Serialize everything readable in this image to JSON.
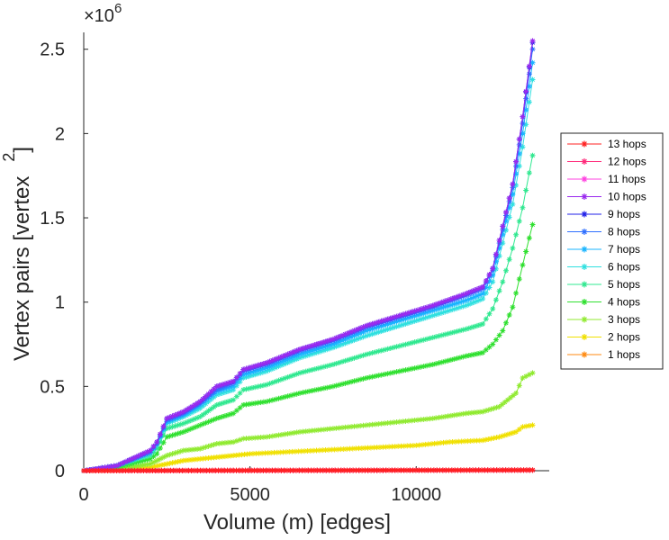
{
  "chart_data": {
    "type": "line",
    "xlabel": "Volume (m) [edges]",
    "ylabel": "Vertex pairs [vertex",
    "ylabel_superscript": "2",
    "ylabel_suffix": "]",
    "y_exponent_base": "×10",
    "y_exponent_power": "6",
    "xlim": [
      0,
      14000
    ],
    "ylim": [
      0,
      2.6
    ],
    "x_ticks": [
      0,
      5000,
      10000
    ],
    "x_tick_labels": [
      "0",
      "5000",
      "10000"
    ],
    "y_ticks": [
      0,
      0.5,
      1,
      1.5,
      2,
      2.5
    ],
    "y_tick_labels": [
      "0",
      "0.5",
      "1",
      "1.5",
      "2",
      "2.5"
    ],
    "grid": false,
    "legend_position": "right",
    "marker": "asterisk",
    "series": [
      {
        "name": "13 hops",
        "color": "#ff2020",
        "points": [
          [
            0,
            0
          ],
          [
            13500,
            0.0035
          ]
        ]
      },
      {
        "name": "12 hops",
        "color": "#ff2a7a",
        "points": [
          [
            0,
            0
          ],
          [
            13500,
            0.0035
          ]
        ]
      },
      {
        "name": "11 hops",
        "color": "#ff40e0",
        "points": [
          [
            0,
            0
          ],
          [
            13500,
            0.0035
          ]
        ]
      },
      {
        "name": "10 hops",
        "color": "#9a2aee",
        "points": [
          [
            0,
            0
          ],
          [
            1000,
            0.03
          ],
          [
            2000,
            0.12
          ],
          [
            2200,
            0.17
          ],
          [
            2500,
            0.31
          ],
          [
            3000,
            0.35
          ],
          [
            3500,
            0.41
          ],
          [
            4000,
            0.5
          ],
          [
            4500,
            0.53
          ],
          [
            4800,
            0.6
          ],
          [
            5500,
            0.64
          ],
          [
            6500,
            0.72
          ],
          [
            7500,
            0.78
          ],
          [
            8500,
            0.86
          ],
          [
            9500,
            0.92
          ],
          [
            10500,
            0.98
          ],
          [
            11500,
            1.05
          ],
          [
            12000,
            1.09
          ],
          [
            12300,
            1.2
          ],
          [
            12600,
            1.45
          ],
          [
            12900,
            1.7
          ],
          [
            13200,
            2.1
          ],
          [
            13500,
            2.55
          ]
        ]
      },
      {
        "name": "9 hops",
        "color": "#2020e8",
        "points": [
          [
            0,
            0
          ],
          [
            1000,
            0.03
          ],
          [
            2000,
            0.12
          ],
          [
            2200,
            0.17
          ],
          [
            2500,
            0.31
          ],
          [
            3000,
            0.35
          ],
          [
            3500,
            0.41
          ],
          [
            4000,
            0.5
          ],
          [
            4500,
            0.53
          ],
          [
            4800,
            0.6
          ],
          [
            5500,
            0.64
          ],
          [
            6500,
            0.72
          ],
          [
            7500,
            0.78
          ],
          [
            8500,
            0.86
          ],
          [
            9500,
            0.92
          ],
          [
            10500,
            0.98
          ],
          [
            11500,
            1.05
          ],
          [
            12000,
            1.09
          ],
          [
            12300,
            1.2
          ],
          [
            12600,
            1.45
          ],
          [
            12900,
            1.7
          ],
          [
            13200,
            2.1
          ],
          [
            13500,
            2.54
          ]
        ]
      },
      {
        "name": "8 hops",
        "color": "#3070ff",
        "points": [
          [
            0,
            0
          ],
          [
            1000,
            0.03
          ],
          [
            2000,
            0.11
          ],
          [
            2200,
            0.16
          ],
          [
            2500,
            0.3
          ],
          [
            3000,
            0.34
          ],
          [
            3500,
            0.4
          ],
          [
            4000,
            0.48
          ],
          [
            4500,
            0.52
          ],
          [
            4800,
            0.59
          ],
          [
            5500,
            0.63
          ],
          [
            6500,
            0.71
          ],
          [
            7500,
            0.77
          ],
          [
            8500,
            0.85
          ],
          [
            9500,
            0.91
          ],
          [
            10500,
            0.97
          ],
          [
            11500,
            1.04
          ],
          [
            12000,
            1.08
          ],
          [
            12300,
            1.19
          ],
          [
            12600,
            1.43
          ],
          [
            12900,
            1.68
          ],
          [
            13200,
            2.06
          ],
          [
            13500,
            2.5
          ]
        ]
      },
      {
        "name": "7 hops",
        "color": "#18b4ff",
        "points": [
          [
            0,
            0
          ],
          [
            1000,
            0.03
          ],
          [
            2000,
            0.11
          ],
          [
            2200,
            0.16
          ],
          [
            2500,
            0.29
          ],
          [
            3000,
            0.33
          ],
          [
            3500,
            0.39
          ],
          [
            4000,
            0.47
          ],
          [
            4500,
            0.5
          ],
          [
            4800,
            0.57
          ],
          [
            5500,
            0.61
          ],
          [
            6500,
            0.69
          ],
          [
            7500,
            0.75
          ],
          [
            8500,
            0.83
          ],
          [
            9500,
            0.89
          ],
          [
            10500,
            0.95
          ],
          [
            11500,
            1.01
          ],
          [
            12000,
            1.05
          ],
          [
            12300,
            1.16
          ],
          [
            12600,
            1.4
          ],
          [
            12900,
            1.64
          ],
          [
            13200,
            2.0
          ],
          [
            13500,
            2.42
          ]
        ]
      },
      {
        "name": "6 hops",
        "color": "#30e0e0",
        "points": [
          [
            0,
            0
          ],
          [
            1000,
            0.03
          ],
          [
            2000,
            0.1
          ],
          [
            2200,
            0.15
          ],
          [
            2500,
            0.28
          ],
          [
            3000,
            0.32
          ],
          [
            3500,
            0.37
          ],
          [
            4000,
            0.45
          ],
          [
            4500,
            0.48
          ],
          [
            4800,
            0.55
          ],
          [
            5500,
            0.59
          ],
          [
            6500,
            0.67
          ],
          [
            7500,
            0.73
          ],
          [
            8500,
            0.8
          ],
          [
            9500,
            0.86
          ],
          [
            10500,
            0.92
          ],
          [
            11500,
            0.98
          ],
          [
            12000,
            1.02
          ],
          [
            12300,
            1.12
          ],
          [
            12600,
            1.35
          ],
          [
            12900,
            1.58
          ],
          [
            13200,
            1.92
          ],
          [
            13500,
            2.32
          ]
        ]
      },
      {
        "name": "5 hops",
        "color": "#30e890",
        "points": [
          [
            0,
            0
          ],
          [
            1000,
            0.03
          ],
          [
            2000,
            0.09
          ],
          [
            2200,
            0.13
          ],
          [
            2500,
            0.25
          ],
          [
            3000,
            0.28
          ],
          [
            3500,
            0.32
          ],
          [
            4000,
            0.39
          ],
          [
            4500,
            0.42
          ],
          [
            4800,
            0.48
          ],
          [
            5500,
            0.51
          ],
          [
            6500,
            0.58
          ],
          [
            7500,
            0.63
          ],
          [
            8500,
            0.69
          ],
          [
            9500,
            0.74
          ],
          [
            10500,
            0.79
          ],
          [
            11500,
            0.84
          ],
          [
            12000,
            0.87
          ],
          [
            12300,
            0.96
          ],
          [
            12600,
            1.12
          ],
          [
            12900,
            1.32
          ],
          [
            13200,
            1.56
          ],
          [
            13500,
            1.87
          ]
        ]
      },
      {
        "name": "4 hops",
        "color": "#30e030",
        "points": [
          [
            0,
            0
          ],
          [
            1000,
            0.02
          ],
          [
            2000,
            0.07
          ],
          [
            2200,
            0.1
          ],
          [
            2500,
            0.2
          ],
          [
            3000,
            0.23
          ],
          [
            3500,
            0.27
          ],
          [
            4000,
            0.31
          ],
          [
            4500,
            0.34
          ],
          [
            4800,
            0.39
          ],
          [
            5500,
            0.41
          ],
          [
            6500,
            0.46
          ],
          [
            7500,
            0.5
          ],
          [
            8500,
            0.55
          ],
          [
            9500,
            0.59
          ],
          [
            10500,
            0.63
          ],
          [
            11500,
            0.68
          ],
          [
            12000,
            0.7
          ],
          [
            12300,
            0.75
          ],
          [
            12600,
            0.83
          ],
          [
            12900,
            0.97
          ],
          [
            13200,
            1.22
          ],
          [
            13500,
            1.46
          ]
        ]
      },
      {
        "name": "3 hops",
        "color": "#90ea30",
        "points": [
          [
            0,
            0
          ],
          [
            1000,
            0.01
          ],
          [
            2000,
            0.04
          ],
          [
            2500,
            0.09
          ],
          [
            3000,
            0.12
          ],
          [
            3500,
            0.13
          ],
          [
            4000,
            0.16
          ],
          [
            4500,
            0.17
          ],
          [
            4800,
            0.19
          ],
          [
            5500,
            0.2
          ],
          [
            6500,
            0.23
          ],
          [
            7500,
            0.25
          ],
          [
            8500,
            0.27
          ],
          [
            9500,
            0.29
          ],
          [
            10500,
            0.31
          ],
          [
            11500,
            0.34
          ],
          [
            12000,
            0.35
          ],
          [
            12500,
            0.38
          ],
          [
            13000,
            0.46
          ],
          [
            13200,
            0.55
          ],
          [
            13500,
            0.58
          ]
        ]
      },
      {
        "name": "2 hops",
        "color": "#f0e000",
        "points": [
          [
            0,
            0
          ],
          [
            1000,
            0.005
          ],
          [
            2000,
            0.02
          ],
          [
            2500,
            0.04
          ],
          [
            3000,
            0.06
          ],
          [
            3500,
            0.07
          ],
          [
            4000,
            0.08
          ],
          [
            4500,
            0.09
          ],
          [
            5000,
            0.1
          ],
          [
            6000,
            0.11
          ],
          [
            7000,
            0.12
          ],
          [
            8000,
            0.13
          ],
          [
            9000,
            0.14
          ],
          [
            10000,
            0.15
          ],
          [
            11000,
            0.17
          ],
          [
            12000,
            0.18
          ],
          [
            12500,
            0.2
          ],
          [
            13000,
            0.23
          ],
          [
            13200,
            0.26
          ],
          [
            13500,
            0.27
          ]
        ]
      },
      {
        "name": "1 hops",
        "color": "#ff8a10",
        "points": [
          [
            0,
            0
          ],
          [
            13500,
            0.004
          ]
        ]
      }
    ]
  }
}
